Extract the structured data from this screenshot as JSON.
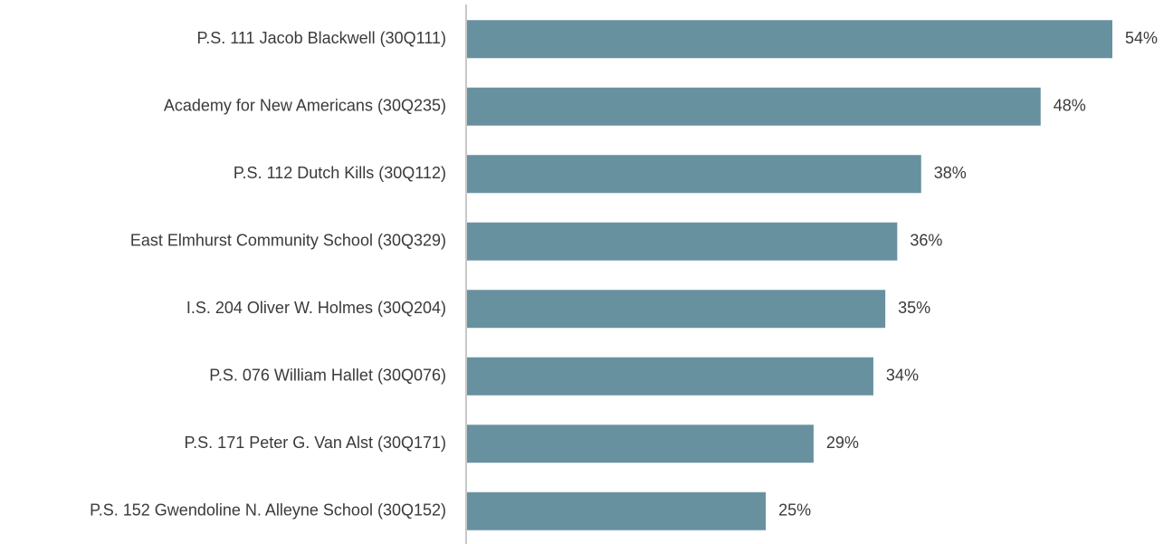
{
  "chart_data": {
    "type": "bar",
    "orientation": "horizontal",
    "categories": [
      "P.S. 111 Jacob Blackwell (30Q111)",
      "Academy for New Americans (30Q235)",
      "P.S. 112 Dutch Kills (30Q112)",
      "East Elmhurst Community School (30Q329)",
      "I.S. 204 Oliver W. Holmes (30Q204)",
      "P.S. 076 William Hallet (30Q076)",
      "P.S. 171 Peter G. Van Alst (30Q171)",
      "P.S. 152 Gwendoline N. Alleyne School (30Q152)"
    ],
    "values": [
      54,
      48,
      38,
      36,
      35,
      34,
      29,
      25
    ],
    "value_labels": [
      "54%",
      "48%",
      "38%",
      "36%",
      "35%",
      "34%",
      "29%",
      "25%"
    ],
    "color": "#6891a0"
  }
}
